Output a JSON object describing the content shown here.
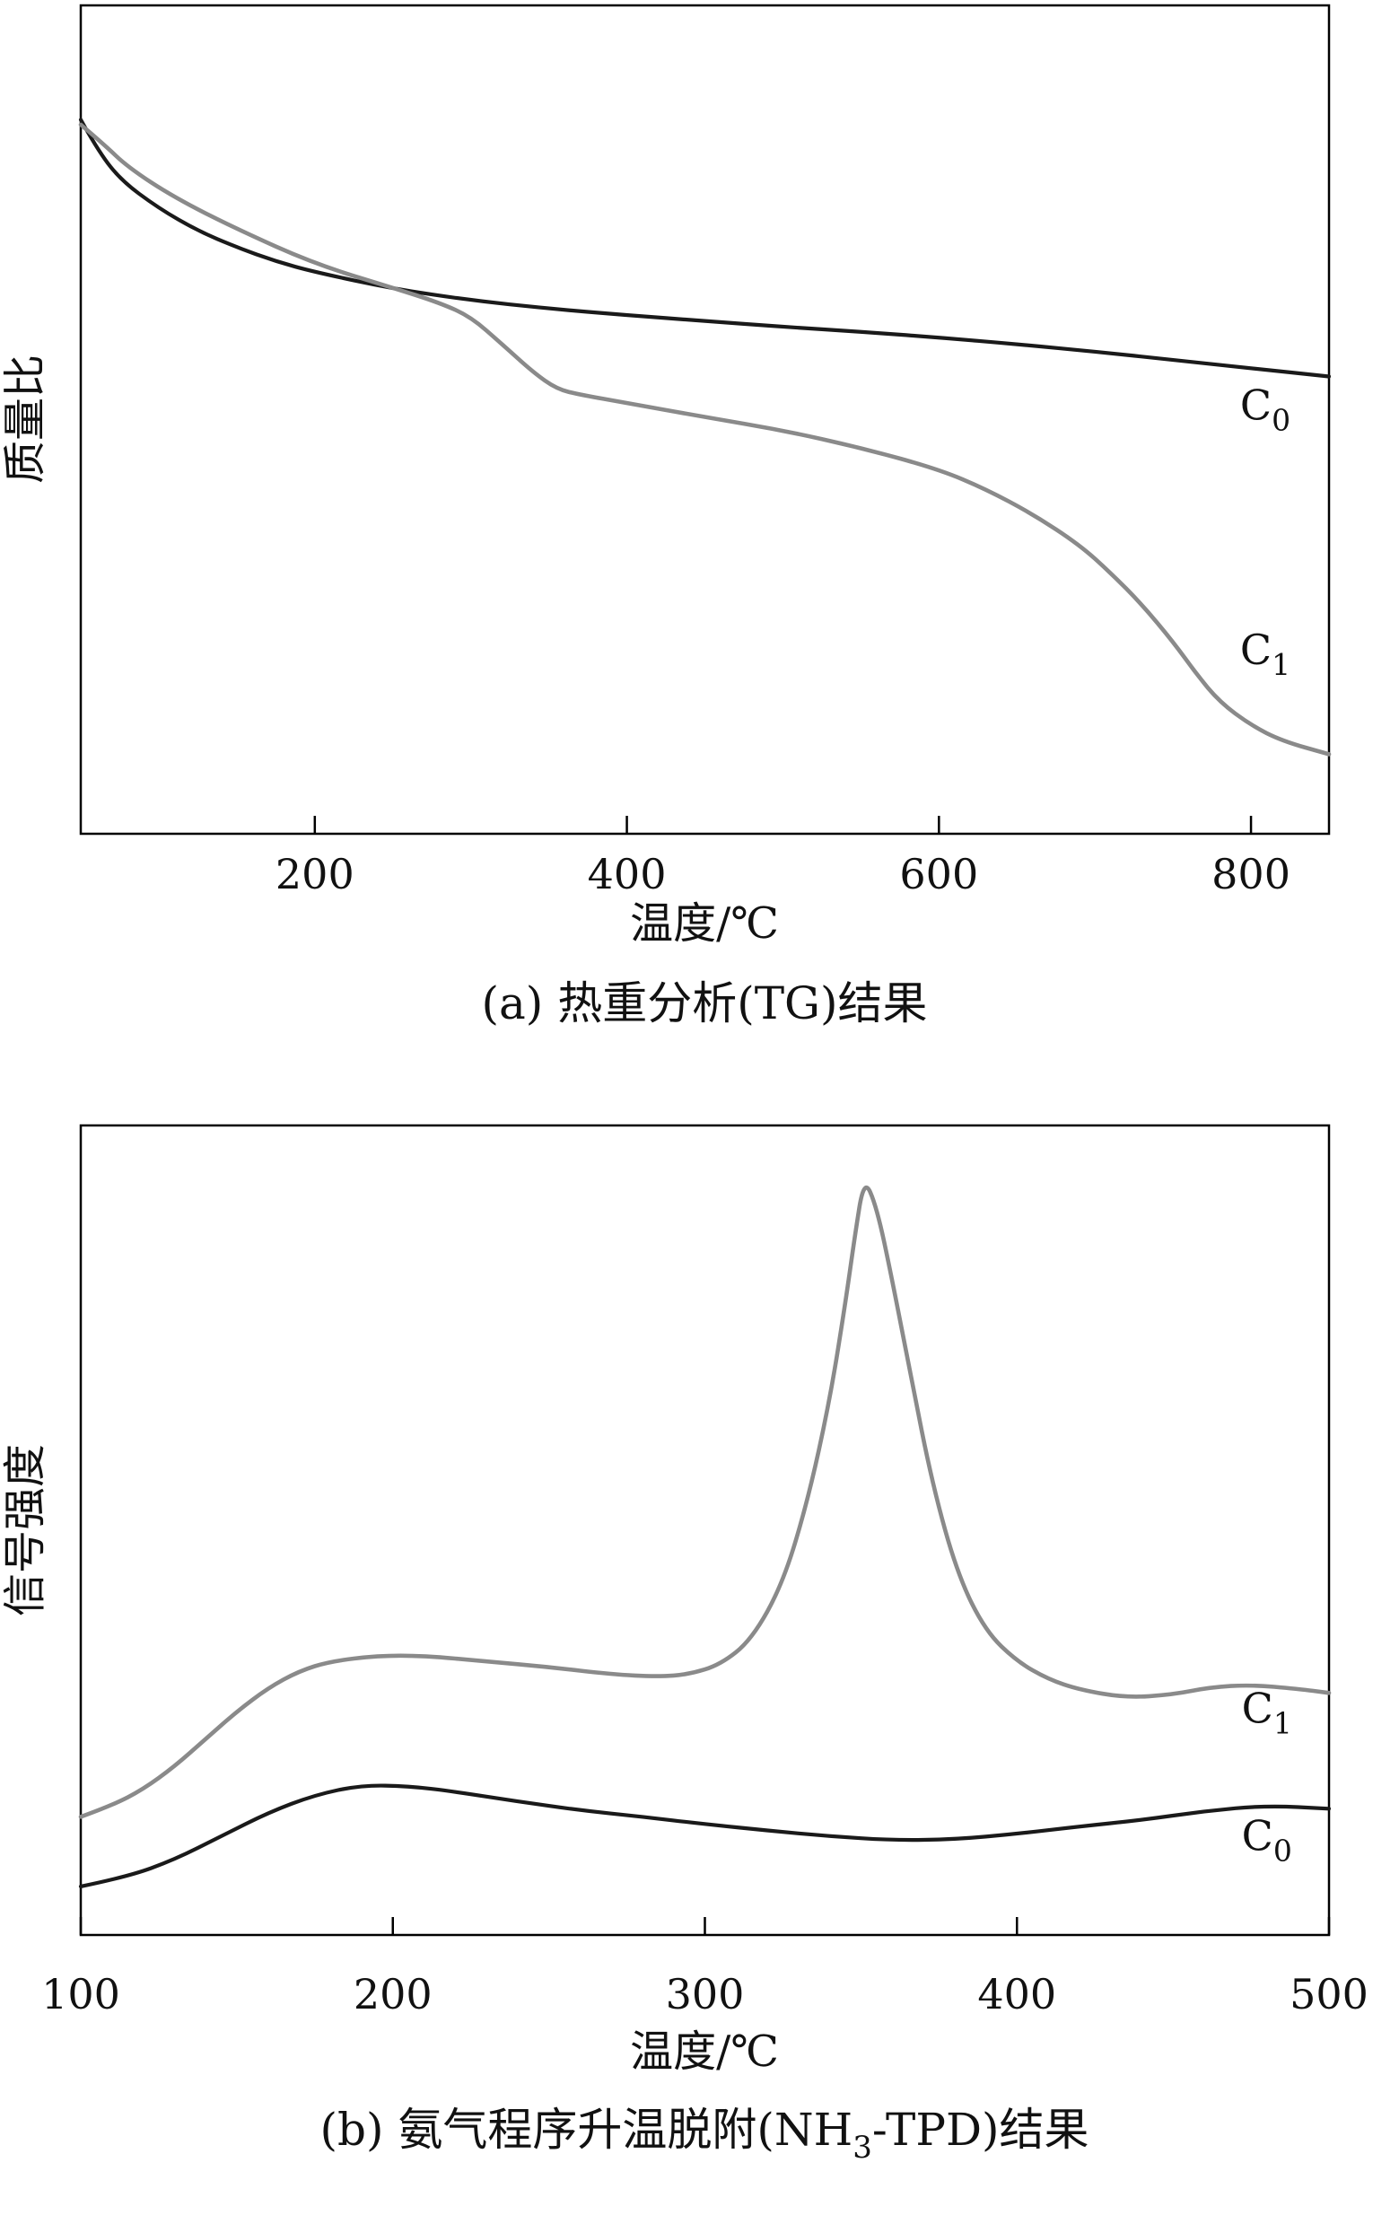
{
  "page": {
    "background": "#ffffff"
  },
  "charts": [
    {
      "name": "tg-analysis",
      "ylabel": "质量比",
      "xlabel": "温度/℃",
      "caption_parts": {
        "pre": "(a) 热重分析(TG)结果",
        "sub": "",
        "post": ""
      },
      "chart_data": {
        "type": "line",
        "x_range": [
          50,
          850
        ],
        "x_ticks": [
          200,
          400,
          600,
          800
        ],
        "x_tick_labels": [
          "200",
          "400",
          "600",
          "800"
        ],
        "y_range": [
          0,
          1
        ],
        "grid": false,
        "legend": "inline-annotations",
        "series": [
          {
            "name": "C0",
            "annotation_main": "C",
            "annotation_sub": "0",
            "color": "#1a1a1a",
            "stroke_width": 4.2,
            "annotation_at": [
              793,
              0.5
            ],
            "x": [
              50,
              60,
              75,
              100,
              125,
              150,
              175,
              200,
              250,
              300,
              350,
              400,
              450,
              500,
              550,
              600,
              650,
              700,
              750,
              800,
              850
            ],
            "y": [
              0.862,
              0.828,
              0.79,
              0.755,
              0.728,
              0.708,
              0.691,
              0.678,
              0.658,
              0.644,
              0.634,
              0.626,
              0.619,
              0.612,
              0.606,
              0.599,
              0.591,
              0.582,
              0.572,
              0.562,
              0.552
            ]
          },
          {
            "name": "C1",
            "annotation_main": "C",
            "annotation_sub": "1",
            "color": "#8a8a8a",
            "stroke_width": 4.6,
            "annotation_at": [
              793,
              0.205
            ],
            "x": [
              50,
              65,
              80,
              110,
              150,
              200,
              250,
              280,
              300,
              320,
              340,
              355,
              370,
              400,
              450,
              500,
              550,
              600,
              630,
              660,
              690,
              710,
              730,
              750,
              765,
              780,
              800,
              820,
              850
            ],
            "y": [
              0.856,
              0.832,
              0.805,
              0.768,
              0.73,
              0.688,
              0.659,
              0.641,
              0.624,
              0.591,
              0.557,
              0.537,
              0.53,
              0.52,
              0.503,
              0.487,
              0.466,
              0.44,
              0.416,
              0.386,
              0.349,
              0.315,
              0.277,
              0.232,
              0.193,
              0.159,
              0.131,
              0.112,
              0.096
            ]
          }
        ]
      }
    },
    {
      "name": "nh3-tpd",
      "ylabel": "信号强度",
      "xlabel": "温度/℃",
      "caption_parts": {
        "pre": "(b) 氨气程序升温脱附(NH",
        "sub": "3",
        "post": "-TPD)结果"
      },
      "chart_data": {
        "type": "line",
        "x_range": [
          100,
          500
        ],
        "x_ticks": [
          100,
          200,
          300,
          400,
          500
        ],
        "x_tick_labels": [
          "100",
          "200",
          "300",
          "400",
          "500"
        ],
        "y_range": [
          0,
          1
        ],
        "grid": false,
        "legend": "inline-annotations",
        "series": [
          {
            "name": "C1",
            "annotation_main": "C",
            "annotation_sub": "1",
            "color": "#8a8a8a",
            "stroke_width": 4.6,
            "annotation_at": [
              472,
              0.262
            ],
            "x": [
              100,
              110,
              120,
              130,
              140,
              150,
              160,
              170,
              180,
              195,
              210,
              230,
              250,
              270,
              285,
              295,
              305,
              315,
              325,
              333,
              340,
              345,
              348,
              351,
              355,
              360,
              366,
              373,
              381,
              390,
              400,
              410,
              420,
              435,
              450,
              462,
              475,
              490,
              500
            ],
            "y": [
              0.146,
              0.16,
              0.18,
              0.208,
              0.242,
              0.276,
              0.305,
              0.326,
              0.338,
              0.345,
              0.345,
              0.338,
              0.331,
              0.322,
              0.319,
              0.322,
              0.334,
              0.365,
              0.434,
              0.537,
              0.66,
              0.78,
              0.862,
              0.935,
              0.9,
              0.81,
              0.69,
              0.555,
              0.445,
              0.375,
              0.338,
              0.316,
              0.303,
              0.293,
              0.297,
              0.306,
              0.309,
              0.304,
              0.299
            ]
          },
          {
            "name": "C0",
            "annotation_main": "C",
            "annotation_sub": "0",
            "color": "#1a1a1a",
            "stroke_width": 4.2,
            "annotation_at": [
              472,
              0.105
            ],
            "x": [
              100,
              115,
              130,
              145,
              160,
              175,
              190,
              205,
              220,
              240,
              260,
              280,
              300,
              320,
              340,
              360,
              380,
              400,
              420,
              440,
              460,
              480,
              500
            ],
            "y": [
              0.06,
              0.072,
              0.093,
              0.122,
              0.151,
              0.173,
              0.185,
              0.184,
              0.177,
              0.165,
              0.154,
              0.146,
              0.137,
              0.129,
              0.122,
              0.117,
              0.118,
              0.125,
              0.134,
              0.142,
              0.153,
              0.16,
              0.156
            ]
          }
        ]
      }
    }
  ]
}
